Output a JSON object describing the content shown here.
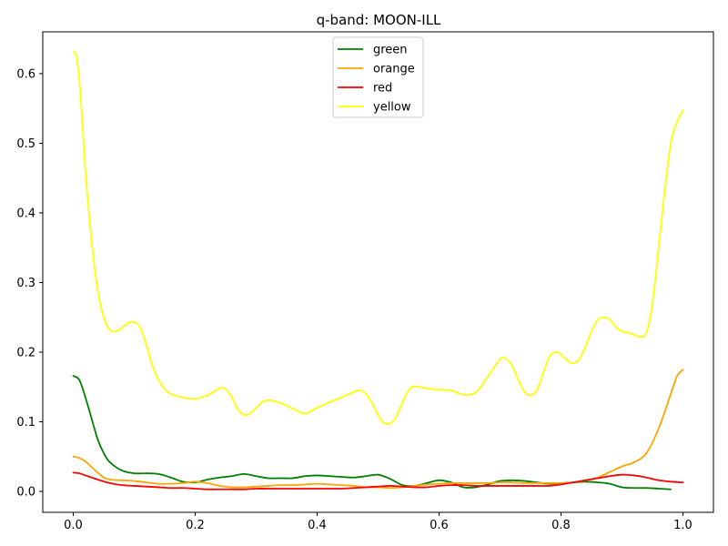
{
  "chart_data": {
    "type": "line",
    "title": "q-band: MOON-ILL",
    "xlabel": "",
    "ylabel": "",
    "xlim": [
      -0.05,
      1.05
    ],
    "ylim": [
      -0.03,
      0.66
    ],
    "xticks": [
      0.0,
      0.2,
      0.4,
      0.6,
      0.8,
      1.0
    ],
    "xtick_labels": [
      "0.0",
      "0.2",
      "0.4",
      "0.6",
      "0.8",
      "1.0"
    ],
    "yticks": [
      0.0,
      0.1,
      0.2,
      0.3,
      0.4,
      0.5,
      0.6
    ],
    "ytick_labels": [
      "0.0",
      "0.1",
      "0.2",
      "0.3",
      "0.4",
      "0.5",
      "0.6"
    ],
    "grid": false,
    "legend_position": "upper center",
    "series": [
      {
        "name": "green",
        "color": "#008000",
        "points": [
          [
            0.0,
            0.166
          ],
          [
            0.01,
            0.16
          ],
          [
            0.02,
            0.135
          ],
          [
            0.03,
            0.105
          ],
          [
            0.04,
            0.075
          ],
          [
            0.05,
            0.055
          ],
          [
            0.06,
            0.042
          ],
          [
            0.08,
            0.03
          ],
          [
            0.1,
            0.026
          ],
          [
            0.12,
            0.026
          ],
          [
            0.14,
            0.025
          ],
          [
            0.16,
            0.02
          ],
          [
            0.18,
            0.014
          ],
          [
            0.2,
            0.013
          ],
          [
            0.22,
            0.017
          ],
          [
            0.24,
            0.02
          ],
          [
            0.26,
            0.022
          ],
          [
            0.28,
            0.025
          ],
          [
            0.3,
            0.022
          ],
          [
            0.32,
            0.019
          ],
          [
            0.34,
            0.019
          ],
          [
            0.36,
            0.019
          ],
          [
            0.38,
            0.022
          ],
          [
            0.4,
            0.023
          ],
          [
            0.42,
            0.022
          ],
          [
            0.44,
            0.021
          ],
          [
            0.46,
            0.02
          ],
          [
            0.48,
            0.022
          ],
          [
            0.5,
            0.024
          ],
          [
            0.52,
            0.018
          ],
          [
            0.54,
            0.009
          ],
          [
            0.56,
            0.008
          ],
          [
            0.58,
            0.012
          ],
          [
            0.6,
            0.016
          ],
          [
            0.62,
            0.013
          ],
          [
            0.64,
            0.006
          ],
          [
            0.66,
            0.006
          ],
          [
            0.68,
            0.01
          ],
          [
            0.7,
            0.015
          ],
          [
            0.72,
            0.016
          ],
          [
            0.74,
            0.015
          ],
          [
            0.76,
            0.013
          ],
          [
            0.78,
            0.011
          ],
          [
            0.8,
            0.012
          ],
          [
            0.82,
            0.013
          ],
          [
            0.84,
            0.014
          ],
          [
            0.86,
            0.013
          ],
          [
            0.88,
            0.011
          ],
          [
            0.9,
            0.006
          ],
          [
            0.92,
            0.005
          ],
          [
            0.94,
            0.005
          ],
          [
            0.96,
            0.004
          ],
          [
            0.98,
            0.003
          ]
        ]
      },
      {
        "name": "orange",
        "color": "#ffa500",
        "points": [
          [
            0.0,
            0.05
          ],
          [
            0.01,
            0.048
          ],
          [
            0.02,
            0.043
          ],
          [
            0.03,
            0.035
          ],
          [
            0.04,
            0.027
          ],
          [
            0.05,
            0.02
          ],
          [
            0.06,
            0.017
          ],
          [
            0.08,
            0.016
          ],
          [
            0.1,
            0.015
          ],
          [
            0.12,
            0.013
          ],
          [
            0.14,
            0.011
          ],
          [
            0.16,
            0.011
          ],
          [
            0.18,
            0.012
          ],
          [
            0.2,
            0.014
          ],
          [
            0.22,
            0.012
          ],
          [
            0.24,
            0.008
          ],
          [
            0.26,
            0.006
          ],
          [
            0.28,
            0.006
          ],
          [
            0.3,
            0.007
          ],
          [
            0.32,
            0.008
          ],
          [
            0.34,
            0.009
          ],
          [
            0.36,
            0.009
          ],
          [
            0.38,
            0.01
          ],
          [
            0.4,
            0.011
          ],
          [
            0.42,
            0.01
          ],
          [
            0.44,
            0.009
          ],
          [
            0.46,
            0.008
          ],
          [
            0.48,
            0.006
          ],
          [
            0.5,
            0.006
          ],
          [
            0.52,
            0.005
          ],
          [
            0.54,
            0.006
          ],
          [
            0.56,
            0.008
          ],
          [
            0.58,
            0.01
          ],
          [
            0.6,
            0.011
          ],
          [
            0.62,
            0.012
          ],
          [
            0.64,
            0.012
          ],
          [
            0.66,
            0.012
          ],
          [
            0.68,
            0.012
          ],
          [
            0.7,
            0.013
          ],
          [
            0.72,
            0.013
          ],
          [
            0.74,
            0.012
          ],
          [
            0.76,
            0.012
          ],
          [
            0.78,
            0.012
          ],
          [
            0.8,
            0.012
          ],
          [
            0.82,
            0.013
          ],
          [
            0.84,
            0.016
          ],
          [
            0.86,
            0.02
          ],
          [
            0.88,
            0.028
          ],
          [
            0.9,
            0.036
          ],
          [
            0.92,
            0.042
          ],
          [
            0.94,
            0.055
          ],
          [
            0.96,
            0.09
          ],
          [
            0.98,
            0.14
          ],
          [
            0.99,
            0.165
          ],
          [
            1.0,
            0.175
          ]
        ]
      },
      {
        "name": "red",
        "color": "#ff0000",
        "points": [
          [
            0.0,
            0.027
          ],
          [
            0.01,
            0.026
          ],
          [
            0.02,
            0.023
          ],
          [
            0.04,
            0.017
          ],
          [
            0.06,
            0.012
          ],
          [
            0.08,
            0.009
          ],
          [
            0.1,
            0.008
          ],
          [
            0.12,
            0.007
          ],
          [
            0.14,
            0.006
          ],
          [
            0.16,
            0.005
          ],
          [
            0.18,
            0.005
          ],
          [
            0.2,
            0.004
          ],
          [
            0.22,
            0.003
          ],
          [
            0.24,
            0.003
          ],
          [
            0.26,
            0.003
          ],
          [
            0.28,
            0.003
          ],
          [
            0.3,
            0.004
          ],
          [
            0.32,
            0.004
          ],
          [
            0.34,
            0.004
          ],
          [
            0.36,
            0.004
          ],
          [
            0.38,
            0.004
          ],
          [
            0.4,
            0.004
          ],
          [
            0.42,
            0.004
          ],
          [
            0.44,
            0.004
          ],
          [
            0.46,
            0.005
          ],
          [
            0.48,
            0.006
          ],
          [
            0.5,
            0.007
          ],
          [
            0.52,
            0.008
          ],
          [
            0.54,
            0.007
          ],
          [
            0.56,
            0.006
          ],
          [
            0.58,
            0.006
          ],
          [
            0.6,
            0.008
          ],
          [
            0.62,
            0.009
          ],
          [
            0.64,
            0.009
          ],
          [
            0.66,
            0.008
          ],
          [
            0.68,
            0.008
          ],
          [
            0.7,
            0.008
          ],
          [
            0.72,
            0.008
          ],
          [
            0.74,
            0.008
          ],
          [
            0.76,
            0.008
          ],
          [
            0.78,
            0.008
          ],
          [
            0.8,
            0.01
          ],
          [
            0.82,
            0.013
          ],
          [
            0.84,
            0.016
          ],
          [
            0.86,
            0.019
          ],
          [
            0.88,
            0.022
          ],
          [
            0.9,
            0.024
          ],
          [
            0.92,
            0.023
          ],
          [
            0.94,
            0.02
          ],
          [
            0.96,
            0.016
          ],
          [
            0.98,
            0.014
          ],
          [
            1.0,
            0.013
          ]
        ]
      },
      {
        "name": "yellow",
        "color": "#ffff00",
        "points": [
          [
            0.0,
            0.632
          ],
          [
            0.005,
            0.625
          ],
          [
            0.01,
            0.59
          ],
          [
            0.015,
            0.53
          ],
          [
            0.02,
            0.46
          ],
          [
            0.03,
            0.36
          ],
          [
            0.04,
            0.29
          ],
          [
            0.05,
            0.25
          ],
          [
            0.06,
            0.232
          ],
          [
            0.07,
            0.23
          ],
          [
            0.08,
            0.235
          ],
          [
            0.09,
            0.242
          ],
          [
            0.1,
            0.243
          ],
          [
            0.11,
            0.235
          ],
          [
            0.12,
            0.21
          ],
          [
            0.13,
            0.18
          ],
          [
            0.14,
            0.16
          ],
          [
            0.15,
            0.147
          ],
          [
            0.16,
            0.14
          ],
          [
            0.18,
            0.135
          ],
          [
            0.2,
            0.133
          ],
          [
            0.22,
            0.138
          ],
          [
            0.24,
            0.148
          ],
          [
            0.25,
            0.147
          ],
          [
            0.26,
            0.135
          ],
          [
            0.27,
            0.118
          ],
          [
            0.28,
            0.11
          ],
          [
            0.29,
            0.112
          ],
          [
            0.3,
            0.12
          ],
          [
            0.31,
            0.128
          ],
          [
            0.32,
            0.131
          ],
          [
            0.34,
            0.127
          ],
          [
            0.36,
            0.119
          ],
          [
            0.38,
            0.112
          ],
          [
            0.4,
            0.12
          ],
          [
            0.42,
            0.128
          ],
          [
            0.44,
            0.135
          ],
          [
            0.46,
            0.143
          ],
          [
            0.47,
            0.145
          ],
          [
            0.48,
            0.14
          ],
          [
            0.49,
            0.127
          ],
          [
            0.5,
            0.11
          ],
          [
            0.51,
            0.098
          ],
          [
            0.52,
            0.098
          ],
          [
            0.53,
            0.108
          ],
          [
            0.54,
            0.128
          ],
          [
            0.55,
            0.145
          ],
          [
            0.56,
            0.151
          ],
          [
            0.58,
            0.148
          ],
          [
            0.6,
            0.146
          ],
          [
            0.62,
            0.145
          ],
          [
            0.64,
            0.139
          ],
          [
            0.66,
            0.142
          ],
          [
            0.68,
            0.165
          ],
          [
            0.7,
            0.19
          ],
          [
            0.71,
            0.19
          ],
          [
            0.72,
            0.18
          ],
          [
            0.73,
            0.16
          ],
          [
            0.74,
            0.143
          ],
          [
            0.75,
            0.138
          ],
          [
            0.76,
            0.145
          ],
          [
            0.77,
            0.168
          ],
          [
            0.78,
            0.192
          ],
          [
            0.79,
            0.2
          ],
          [
            0.8,
            0.197
          ],
          [
            0.81,
            0.188
          ],
          [
            0.82,
            0.184
          ],
          [
            0.83,
            0.19
          ],
          [
            0.84,
            0.208
          ],
          [
            0.85,
            0.23
          ],
          [
            0.86,
            0.246
          ],
          [
            0.87,
            0.25
          ],
          [
            0.88,
            0.247
          ],
          [
            0.89,
            0.236
          ],
          [
            0.9,
            0.23
          ],
          [
            0.91,
            0.228
          ],
          [
            0.92,
            0.225
          ],
          [
            0.93,
            0.222
          ],
          [
            0.94,
            0.228
          ],
          [
            0.95,
            0.27
          ],
          [
            0.96,
            0.35
          ],
          [
            0.97,
            0.43
          ],
          [
            0.98,
            0.5
          ],
          [
            0.99,
            0.53
          ],
          [
            1.0,
            0.547
          ]
        ]
      }
    ]
  }
}
